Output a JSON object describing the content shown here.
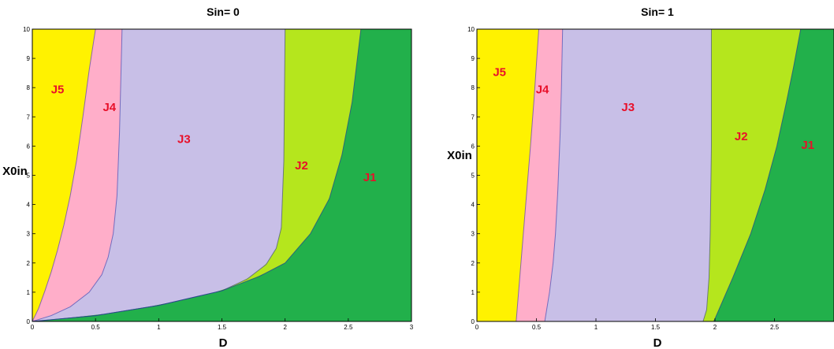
{
  "colors": {
    "J1": "#22b04b",
    "J2": "#b5e61d",
    "J3": "#c8bfe7",
    "J4": "#ffaec9",
    "J5": "#fff200",
    "region_label": "#e8102a",
    "boundary": "#2a2aa0"
  },
  "chart_data": [
    {
      "type": "area",
      "title": "Sin= 0",
      "xlabel": "D",
      "ylabel": "X0in",
      "xlim": [
        0,
        3
      ],
      "ylim": [
        0,
        10
      ],
      "x_ticks": [
        "0",
        "0.5",
        "1",
        "1.5",
        "2",
        "2.5",
        "3"
      ],
      "y_ticks": [
        "0",
        "1",
        "2",
        "3",
        "4",
        "5",
        "6",
        "7",
        "8",
        "9",
        "10"
      ],
      "grid": false,
      "legend": "none",
      "regions": [
        {
          "name": "J5",
          "color_key": "J5"
        },
        {
          "name": "J4",
          "color_key": "J4"
        },
        {
          "name": "J3",
          "color_key": "J3"
        },
        {
          "name": "J2",
          "color_key": "J2"
        },
        {
          "name": "J1",
          "color_key": "J1"
        }
      ],
      "boundaries": {
        "J5_J4": {
          "x": [
            0,
            0.05,
            0.1,
            0.15,
            0.2,
            0.25,
            0.3,
            0.35,
            0.4,
            0.45,
            0.5
          ],
          "y": [
            0,
            0.45,
            1.05,
            1.7,
            2.45,
            3.3,
            4.3,
            5.5,
            7.0,
            8.6,
            10
          ]
        },
        "J4_J3": {
          "x": [
            0,
            0.15,
            0.3,
            0.45,
            0.55,
            0.6,
            0.64,
            0.67,
            0.69,
            0.71
          ],
          "y": [
            0,
            0.2,
            0.5,
            1.0,
            1.6,
            2.2,
            3.0,
            4.3,
            6.5,
            10
          ]
        },
        "J3_J2": {
          "x": [
            0,
            0.5,
            1.0,
            1.5,
            1.7,
            1.85,
            1.93,
            1.97,
            1.99,
            2.0
          ],
          "y": [
            0,
            0.2,
            0.55,
            1.05,
            1.45,
            1.95,
            2.5,
            3.2,
            5.5,
            10
          ]
        },
        "J2_J1": {
          "x": [
            0,
            0.5,
            1.0,
            1.5,
            1.8,
            2.0,
            2.2,
            2.35,
            2.45,
            2.53,
            2.6
          ],
          "y": [
            0,
            0.2,
            0.55,
            1.05,
            1.55,
            2.0,
            3.0,
            4.2,
            5.7,
            7.5,
            10
          ]
        }
      },
      "labels": [
        {
          "text": "J5",
          "x": 0.2,
          "y": 7.8
        },
        {
          "text": "J4",
          "x": 0.61,
          "y": 7.2
        },
        {
          "text": "J3",
          "x": 1.2,
          "y": 6.1
        },
        {
          "text": "J2",
          "x": 2.13,
          "y": 5.2
        },
        {
          "text": "J1",
          "x": 2.67,
          "y": 4.8
        }
      ]
    },
    {
      "type": "area",
      "title": "Sin= 1",
      "xlabel": "D",
      "ylabel": "X0in",
      "xlim": [
        0,
        3
      ],
      "ylim": [
        0,
        10
      ],
      "x_ticks": [
        "0",
        "0.5",
        "1",
        "1.5",
        "2",
        "2.5",
        ""
      ],
      "y_ticks": [
        "0",
        "1",
        "2",
        "3",
        "4",
        "5",
        "6",
        "7",
        "8",
        "9",
        "10"
      ],
      "grid": false,
      "legend": "none",
      "regions": [
        {
          "name": "J5",
          "color_key": "J5"
        },
        {
          "name": "J4",
          "color_key": "J4"
        },
        {
          "name": "J3",
          "color_key": "J3"
        },
        {
          "name": "J2",
          "color_key": "J2"
        },
        {
          "name": "J1",
          "color_key": "J1"
        }
      ],
      "boundaries": {
        "J5_J4": {
          "x": [
            0.33,
            0.36,
            0.39,
            0.42,
            0.45,
            0.48,
            0.5,
            0.52
          ],
          "y": [
            0,
            1.5,
            3.0,
            4.5,
            6.0,
            7.6,
            8.8,
            10
          ]
        },
        "J4_J3": {
          "x": [
            0.57,
            0.61,
            0.64,
            0.66,
            0.68,
            0.7,
            0.71,
            0.72
          ],
          "y": [
            0,
            1.0,
            2.0,
            3.0,
            4.5,
            6.5,
            8.0,
            10
          ]
        },
        "J3_J2": {
          "x": [
            1.9,
            1.93,
            1.95,
            1.96,
            1.97,
            1.97
          ],
          "y": [
            0,
            0.4,
            1.5,
            3.0,
            6.0,
            10
          ]
        },
        "J2_J1": {
          "x": [
            1.99,
            2.15,
            2.3,
            2.42,
            2.52,
            2.6,
            2.66,
            2.72
          ],
          "y": [
            0,
            1.5,
            3.0,
            4.5,
            6.0,
            7.5,
            8.7,
            10
          ]
        }
      },
      "labels": [
        {
          "text": "J5",
          "x": 0.19,
          "y": 8.4
        },
        {
          "text": "J4",
          "x": 0.55,
          "y": 7.8
        },
        {
          "text": "J3",
          "x": 1.27,
          "y": 7.2
        },
        {
          "text": "J2",
          "x": 2.22,
          "y": 6.2
        },
        {
          "text": "J1",
          "x": 2.78,
          "y": 5.9
        }
      ]
    }
  ]
}
